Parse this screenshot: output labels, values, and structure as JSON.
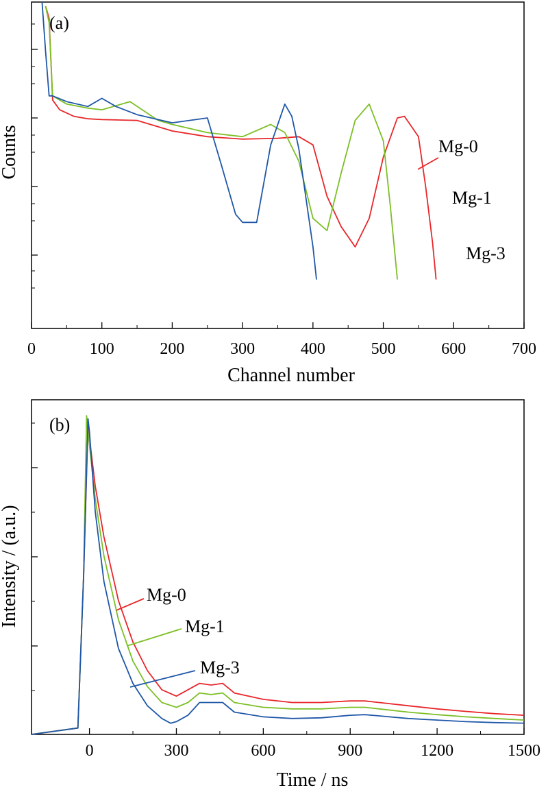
{
  "colors": {
    "Mg-0": "#e8262a",
    "Mg-1": "#7cbf25",
    "Mg-3": "#1f57a8"
  },
  "chart_data": [
    {
      "panel_label": "(a)",
      "type": "line",
      "xlabel": "Channel number",
      "ylabel": "Counts",
      "xlim": [
        0,
        700
      ],
      "x_ticks": [
        0,
        100,
        200,
        300,
        400,
        500,
        600,
        700
      ],
      "ylim": [
        0,
        4
      ],
      "y_scale": "log",
      "y_tick_labels_shown": false,
      "legend": {
        "placement": "right",
        "entries": [
          "Mg-0",
          "Mg-1",
          "Mg-3"
        ]
      },
      "series": [
        {
          "name": "Mg-0",
          "x": [
            20,
            25,
            30,
            40,
            60,
            80,
            100,
            150,
            200,
            250,
            300,
            350,
            380,
            400,
            420,
            440,
            460,
            480,
            500,
            520,
            530,
            550,
            560,
            570,
            575
          ],
          "y": [
            3.95,
            3.8,
            2.8,
            2.68,
            2.6,
            2.57,
            2.56,
            2.55,
            2.42,
            2.35,
            2.32,
            2.33,
            2.35,
            2.25,
            1.62,
            1.25,
            1.0,
            1.35,
            2.1,
            2.58,
            2.6,
            2.35,
            1.75,
            1.05,
            0.6
          ]
        },
        {
          "name": "Mg-1",
          "x": [
            20,
            25,
            30,
            50,
            80,
            100,
            140,
            180,
            200,
            250,
            300,
            340,
            360,
            380,
            400,
            420,
            440,
            460,
            480,
            500,
            510,
            520
          ],
          "y": [
            3.95,
            3.75,
            2.85,
            2.75,
            2.7,
            2.68,
            2.78,
            2.55,
            2.5,
            2.4,
            2.35,
            2.5,
            2.4,
            2.05,
            1.35,
            1.2,
            1.9,
            2.55,
            2.75,
            2.3,
            1.5,
            0.6
          ]
        },
        {
          "name": "Mg-3",
          "x": [
            15,
            20,
            25,
            30,
            50,
            80,
            100,
            120,
            150,
            200,
            250,
            270,
            290,
            300,
            320,
            340,
            360,
            370,
            380,
            400,
            405
          ],
          "y": [
            4.0,
            3.4,
            2.85,
            2.85,
            2.78,
            2.72,
            2.82,
            2.72,
            2.62,
            2.52,
            2.58,
            2.0,
            1.4,
            1.3,
            1.3,
            2.25,
            2.75,
            2.6,
            2.2,
            1.0,
            0.6
          ]
        }
      ]
    },
    {
      "panel_label": "(b)",
      "type": "line",
      "xlabel": "Time / ns",
      "ylabel": "Intensity / (a.u.)",
      "xlim": [
        -200,
        1500
      ],
      "x_ticks": [
        0,
        300,
        600,
        900,
        1200,
        1500
      ],
      "ylim": [
        0,
        1.05
      ],
      "y_tick_labels_shown": false,
      "legend": {
        "placement": "center-left",
        "entries": [
          "Mg-0",
          "Mg-1",
          "Mg-3"
        ]
      },
      "series": [
        {
          "name": "Mg-0",
          "x": [
            -200,
            -40,
            -20,
            -5,
            0,
            20,
            50,
            100,
            150,
            200,
            250,
            300,
            340,
            380,
            420,
            460,
            500,
            600,
            700,
            800,
            900,
            950,
            1000,
            1100,
            1200,
            1300,
            1400,
            1500
          ],
          "y": [
            0.0,
            0.02,
            0.5,
            0.97,
            0.93,
            0.78,
            0.62,
            0.42,
            0.29,
            0.2,
            0.14,
            0.12,
            0.14,
            0.16,
            0.155,
            0.16,
            0.13,
            0.11,
            0.1,
            0.1,
            0.105,
            0.105,
            0.1,
            0.09,
            0.08,
            0.072,
            0.065,
            0.06
          ]
        },
        {
          "name": "Mg-1",
          "x": [
            -200,
            -40,
            -20,
            -10,
            -5,
            20,
            50,
            100,
            150,
            200,
            250,
            300,
            340,
            380,
            420,
            460,
            500,
            600,
            700,
            800,
            900,
            950,
            1000,
            1100,
            1200,
            1300,
            1400,
            1500
          ],
          "y": [
            0.0,
            0.02,
            0.5,
            1.0,
            0.95,
            0.74,
            0.56,
            0.36,
            0.23,
            0.15,
            0.1,
            0.085,
            0.1,
            0.13,
            0.125,
            0.13,
            0.1,
            0.085,
            0.08,
            0.08,
            0.085,
            0.085,
            0.08,
            0.07,
            0.062,
            0.055,
            0.05,
            0.045
          ]
        },
        {
          "name": "Mg-3",
          "x": [
            -200,
            -40,
            -20,
            -5,
            0,
            20,
            50,
            100,
            150,
            200,
            250,
            280,
            300,
            340,
            380,
            420,
            460,
            500,
            600,
            700,
            800,
            900,
            950,
            1000,
            1100,
            1200,
            1300,
            1400,
            1500
          ],
          "y": [
            0.0,
            0.02,
            0.5,
            0.99,
            0.95,
            0.7,
            0.48,
            0.27,
            0.16,
            0.09,
            0.05,
            0.035,
            0.04,
            0.06,
            0.1,
            0.1,
            0.1,
            0.07,
            0.055,
            0.05,
            0.052,
            0.06,
            0.062,
            0.058,
            0.05,
            0.045,
            0.04,
            0.037,
            0.035
          ]
        }
      ]
    }
  ]
}
